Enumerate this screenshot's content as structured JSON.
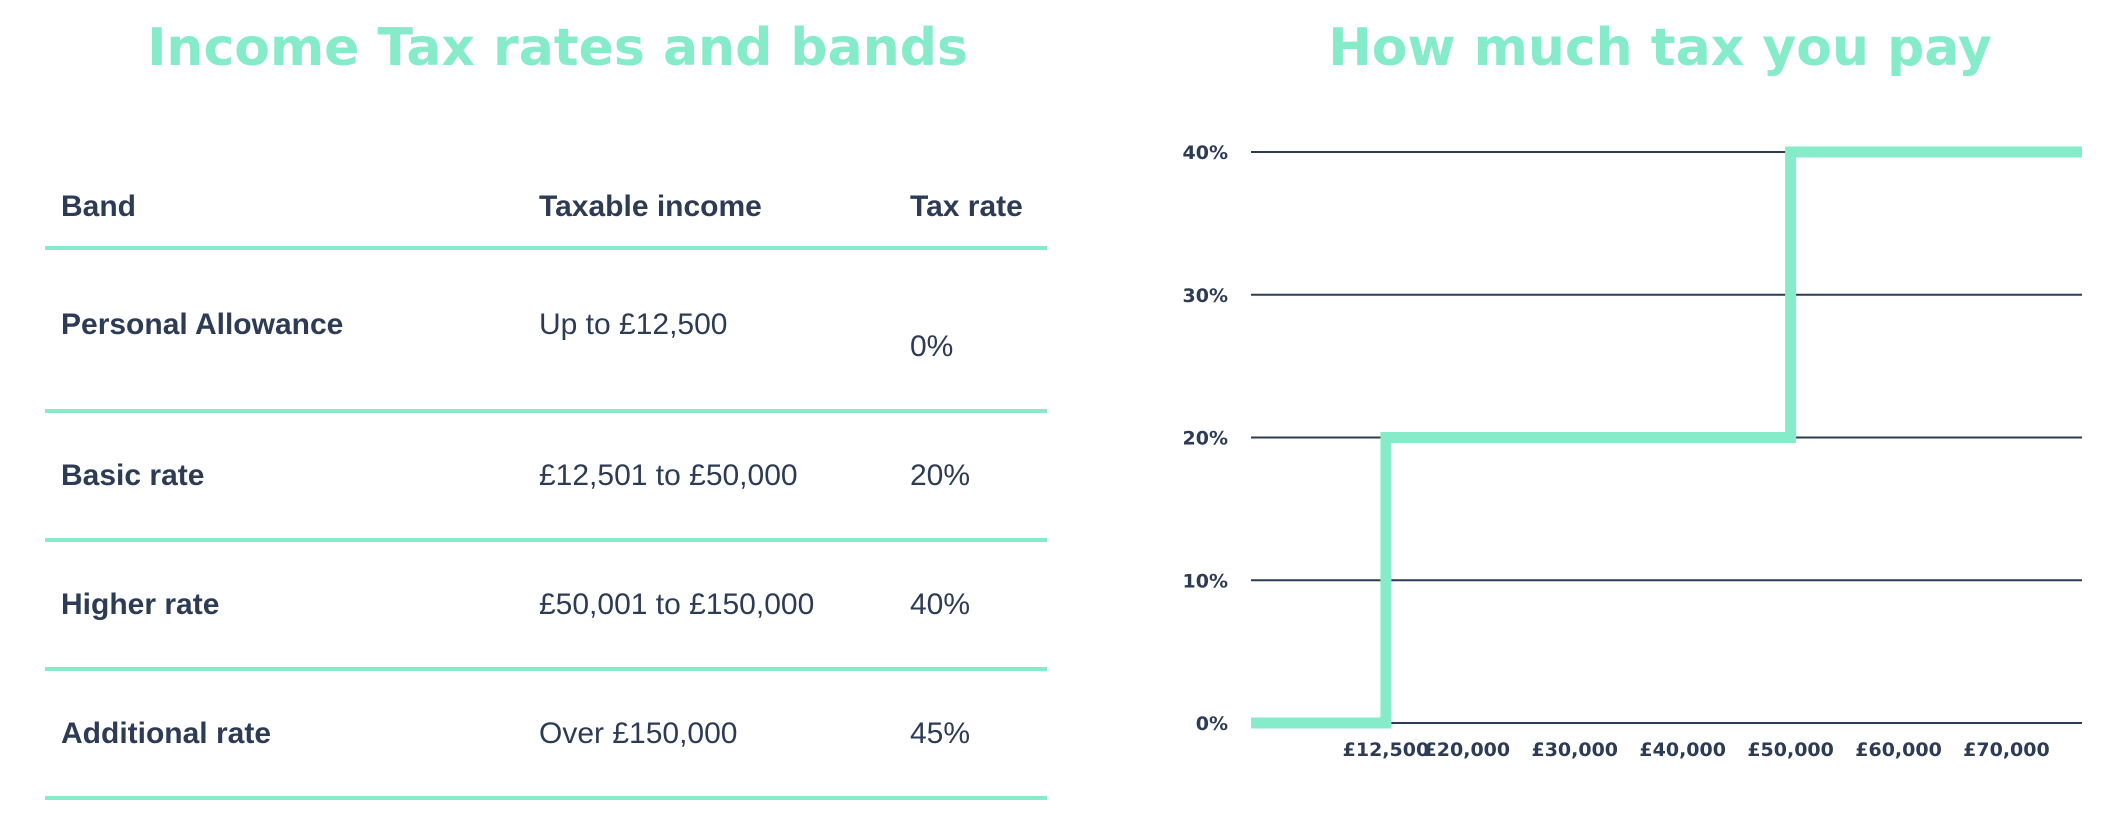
{
  "table": {
    "title": "Income Tax rates and bands",
    "headers": [
      "Band",
      "Taxable income",
      "Tax rate"
    ],
    "rows": [
      {
        "band": "Personal Allowance",
        "income": "Up to £12,500",
        "rate": "0%"
      },
      {
        "band": "Basic rate",
        "income": "£12,501 to £50,000",
        "rate": "20%"
      },
      {
        "band": "Higher rate",
        "income": "£50,001 to £150,000",
        "rate": "40%"
      },
      {
        "band": "Additional rate",
        "income": "Over £150,000",
        "rate": "45%"
      }
    ]
  },
  "chart_data": {
    "type": "line",
    "title": "How much tax you pay",
    "xlabel": "",
    "ylabel": "",
    "x_ticks": [
      12500,
      20000,
      30000,
      40000,
      50000,
      60000,
      70000
    ],
    "x_tick_labels": [
      "£12,500",
      "£20,000",
      "£30,000",
      "£40,000",
      "£50,000",
      "£60,000",
      "£70,000"
    ],
    "y_ticks": [
      0,
      10,
      20,
      30,
      40
    ],
    "y_tick_labels": [
      "0%",
      "10%",
      "20%",
      "30%",
      "40%"
    ],
    "xlim": [
      0,
      77000
    ],
    "ylim": [
      0,
      40
    ],
    "grid": true,
    "series": [
      {
        "step": true,
        "x": [
          0,
          12500,
          12500,
          50000,
          50000,
          77000
        ],
        "y": [
          0,
          0,
          20,
          20,
          40,
          40
        ]
      }
    ],
    "colors": {
      "line": "#86ebc9",
      "grid": "#2d3b55",
      "text": "#2d3b55"
    }
  }
}
